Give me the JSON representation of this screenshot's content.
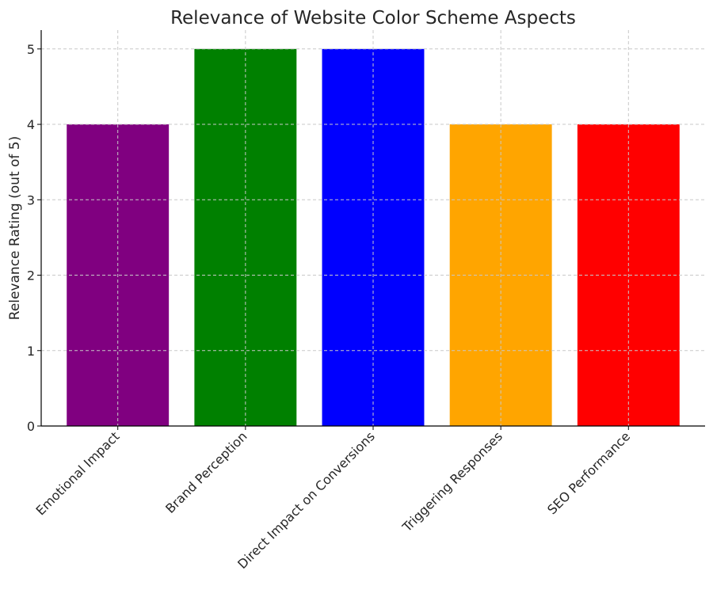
{
  "chart_data": {
    "type": "bar",
    "title": "Relevance of Website Color Scheme Aspects",
    "xlabel": "",
    "ylabel": "Relevance Rating (out of 5)",
    "categories": [
      "Emotional Impact",
      "Brand Perception",
      "Direct Impact on Conversions",
      "Triggering Responses",
      "SEO Performance"
    ],
    "values": [
      4,
      5,
      5,
      4,
      4
    ],
    "colors": [
      "#800080",
      "#008000",
      "#0000ff",
      "#ffa500",
      "#ff0000"
    ],
    "ylim": [
      0,
      5.25
    ],
    "yticks": [
      "0",
      "1",
      "2",
      "3",
      "4",
      "5"
    ],
    "grid": true,
    "legend": "none"
  }
}
